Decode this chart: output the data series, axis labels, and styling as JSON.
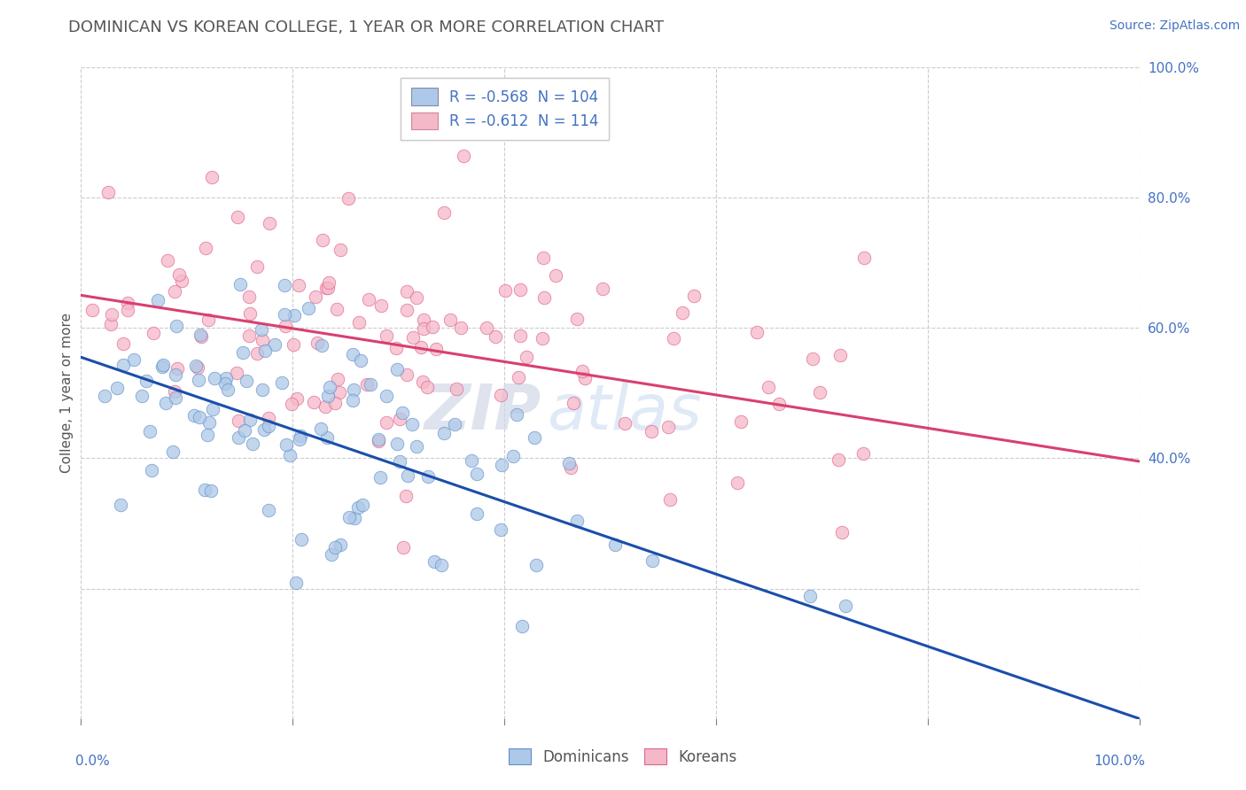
{
  "title": "DOMINICAN VS KOREAN COLLEGE, 1 YEAR OR MORE CORRELATION CHART",
  "source_text": "Source: ZipAtlas.com",
  "ylabel": "College, 1 year or more",
  "watermark_zip": "ZIP",
  "watermark_atlas": "atlas",
  "legend_label_1": "Dominicans",
  "legend_label_2": "Koreans",
  "r1": -0.568,
  "n1": 104,
  "r2": -0.612,
  "n2": 114,
  "color_blue": "#adc8e8",
  "color_pink": "#f5b8c8",
  "color_blue_dark": "#6090c8",
  "color_pink_dark": "#e06090",
  "line_blue": "#1a4faa",
  "line_pink": "#d84070",
  "axis_label_color": "#4472c4",
  "title_color": "#555555",
  "grid_color": "#cccccc",
  "background_color": "#ffffff",
  "xlim": [
    0.0,
    1.0
  ],
  "ylim": [
    0.0,
    1.0
  ],
  "right_yticks": [
    0.4,
    0.6,
    0.8,
    1.0
  ],
  "right_ytick_labels": [
    "40.0%",
    "60.0%",
    "80.0%",
    "100.0%"
  ],
  "intercept_blue": 0.555,
  "slope_blue": -0.555,
  "intercept_pink": 0.65,
  "slope_pink": -0.255,
  "seed_blue": 42,
  "seed_pink": 17
}
